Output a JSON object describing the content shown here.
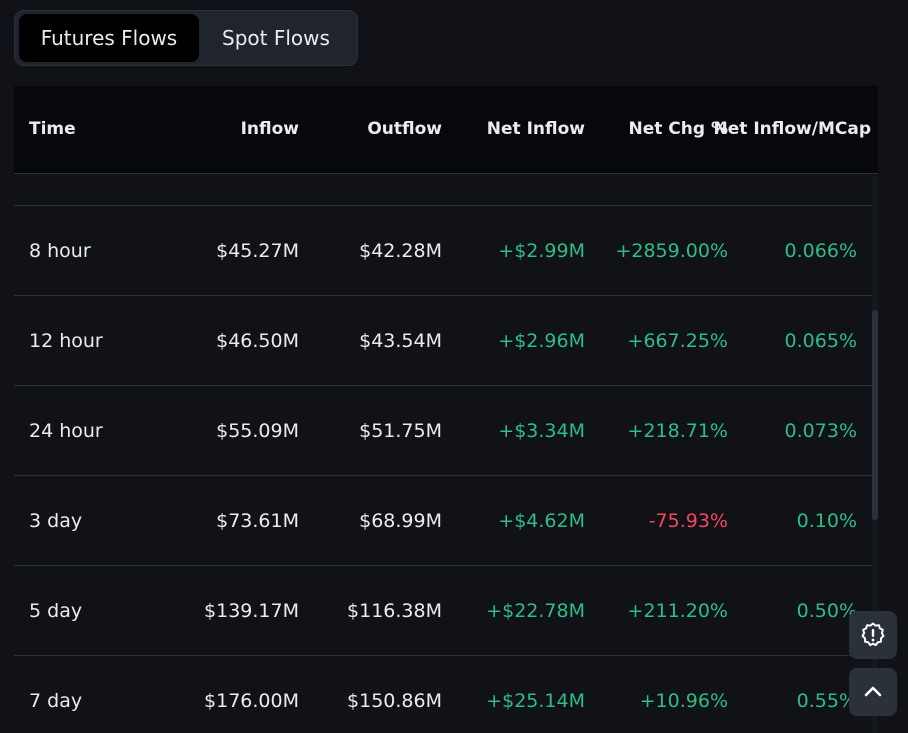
{
  "tabs": [
    {
      "label": "Futures Flows",
      "active": true
    },
    {
      "label": "Spot Flows",
      "active": false
    }
  ],
  "table": {
    "headers": {
      "time": "Time",
      "inflow": "Inflow",
      "outflow": "Outflow",
      "net_inflow": "Net Inflow",
      "net_chg": "Net Chg %",
      "net_mcap": "Net Inflow/MCap"
    },
    "rows": [
      {
        "time": "8 hour",
        "inflow": "$45.27M",
        "outflow": "$42.28M",
        "net_inflow": "+$2.99M",
        "net_chg": "+2859.00%",
        "net_mcap": "0.066%"
      },
      {
        "time": "12 hour",
        "inflow": "$46.50M",
        "outflow": "$43.54M",
        "net_inflow": "+$2.96M",
        "net_chg": "+667.25%",
        "net_mcap": "0.065%"
      },
      {
        "time": "24 hour",
        "inflow": "$55.09M",
        "outflow": "$51.75M",
        "net_inflow": "+$3.34M",
        "net_chg": "+218.71%",
        "net_mcap": "0.073%"
      },
      {
        "time": "3 day",
        "inflow": "$73.61M",
        "outflow": "$68.99M",
        "net_inflow": "+$4.62M",
        "net_chg": "-75.93%",
        "net_mcap": "0.10%"
      },
      {
        "time": "5 day",
        "inflow": "$139.17M",
        "outflow": "$116.38M",
        "net_inflow": "+$22.78M",
        "net_chg": "+211.20%",
        "net_mcap": "0.50%"
      },
      {
        "time": "7 day",
        "inflow": "$176.00M",
        "outflow": "$150.86M",
        "net_inflow": "+$25.14M",
        "net_chg": "+10.96%",
        "net_mcap": "0.55%"
      }
    ]
  },
  "floating_buttons": {
    "alert_icon": "alert-badge-icon",
    "top_icon": "chevron-up-icon"
  },
  "colors": {
    "positive": "#2ebd85",
    "negative": "#f6465d",
    "background": "#101217",
    "text": "#eaecef"
  }
}
